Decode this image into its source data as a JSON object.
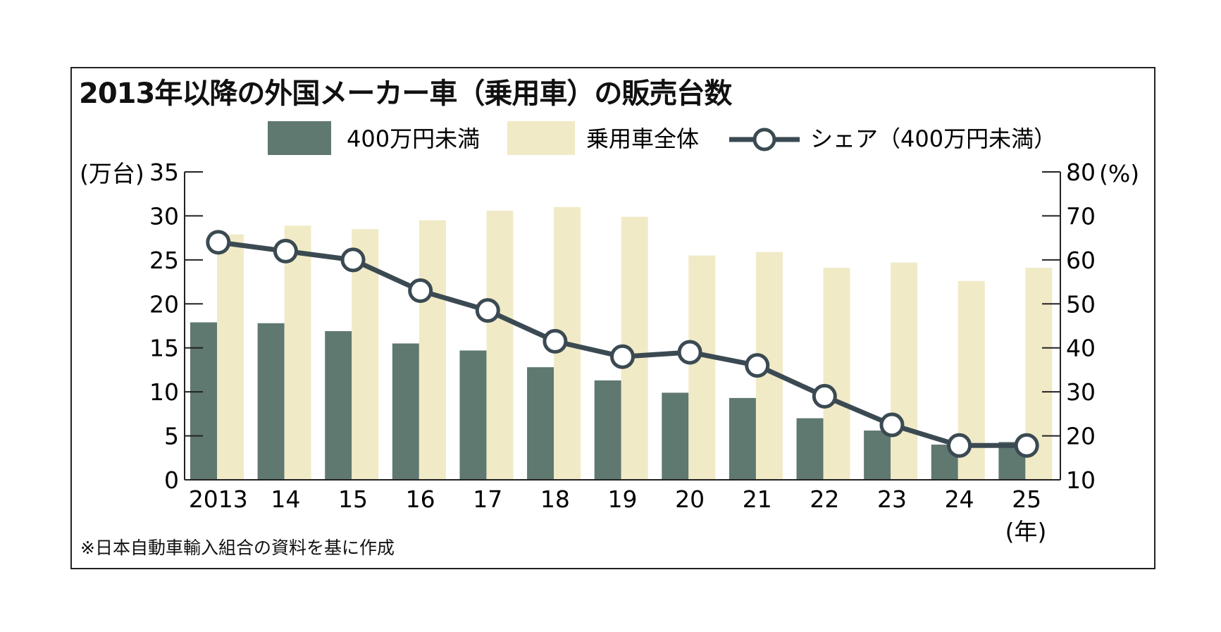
{
  "title": "2013年以降の外国メーカー車（乗用車）の販売台数",
  "note": "※日本自動車輸入組合の資料を基に作成",
  "colors": {
    "under4m_bar": "#5f7870",
    "total_bar": "#f0eac6",
    "share_line": "#3b4a52",
    "marker_fill": "#ffffff"
  },
  "chart_data": {
    "type": "bar",
    "categories": [
      "2013",
      "14",
      "15",
      "16",
      "17",
      "18",
      "19",
      "20",
      "21",
      "22",
      "23",
      "24",
      "25"
    ],
    "x_unit": "(年)",
    "y_left": {
      "unit": "(万台)",
      "min": 0,
      "max": 35,
      "ticks": [
        "0",
        "5",
        "10",
        "15",
        "20",
        "25",
        "30",
        "35"
      ]
    },
    "y_right": {
      "unit": "(%)",
      "min": 10,
      "max": 80,
      "ticks": [
        "10",
        "20",
        "30",
        "40",
        "50",
        "60",
        "70",
        "80"
      ]
    },
    "series": [
      {
        "name": "400万円未満",
        "kind": "bar",
        "axis": "left",
        "values": [
          17.9,
          17.8,
          16.9,
          15.5,
          14.7,
          12.8,
          11.3,
          9.9,
          9.3,
          7.0,
          5.6,
          4.0,
          4.3
        ]
      },
      {
        "name": "乗用車全体",
        "kind": "bar",
        "axis": "left",
        "values": [
          27.9,
          28.9,
          28.5,
          29.5,
          30.6,
          31.0,
          29.9,
          25.5,
          25.9,
          24.1,
          24.7,
          22.6,
          24.1
        ]
      },
      {
        "name": "シェア（400万円未満）",
        "kind": "line",
        "axis": "right",
        "values": [
          64.0,
          62.0,
          60.0,
          53.0,
          48.5,
          41.5,
          38.0,
          39.0,
          36.0,
          29.0,
          22.5,
          17.8,
          17.8
        ]
      }
    ],
    "legend": "top-center",
    "grid": false
  }
}
